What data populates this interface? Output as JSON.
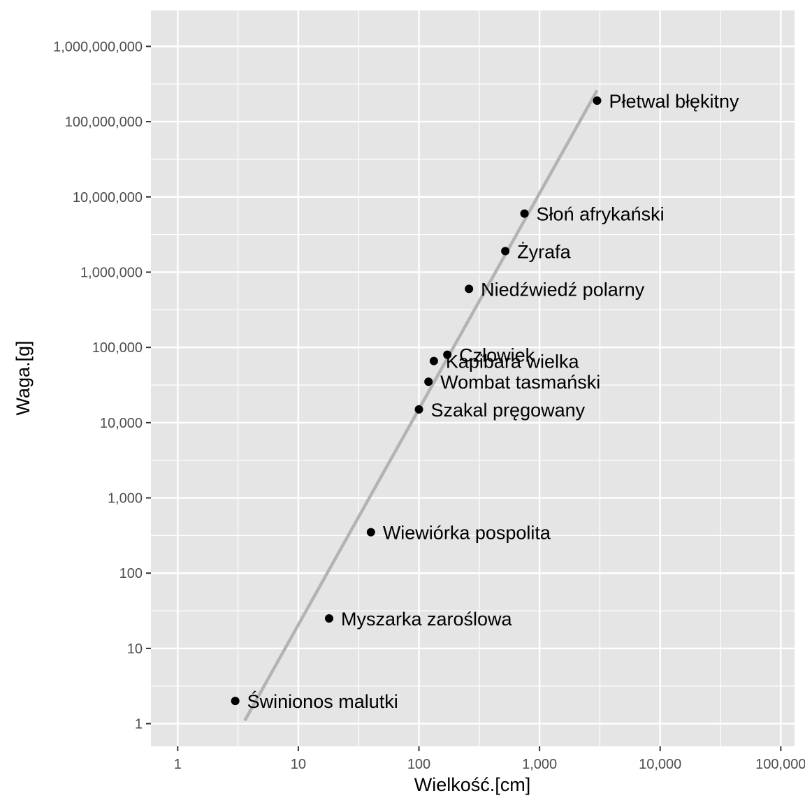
{
  "chart_data": {
    "type": "scatter",
    "title": "",
    "xlabel": "Wielkość.[cm]",
    "ylabel": "Waga.[g]",
    "x_scale": "log10",
    "y_scale": "log10",
    "xlim": [
      0.6,
      130000
    ],
    "ylim": [
      0.5,
      3000000000
    ],
    "x_ticks": [
      {
        "value": 1,
        "label": "1"
      },
      {
        "value": 10,
        "label": "10"
      },
      {
        "value": 100,
        "label": "100"
      },
      {
        "value": 1000,
        "label": "1,000"
      },
      {
        "value": 10000,
        "label": "10,000"
      },
      {
        "value": 100000,
        "label": "100,000"
      }
    ],
    "y_ticks": [
      {
        "value": 1,
        "label": "1"
      },
      {
        "value": 10,
        "label": "10"
      },
      {
        "value": 100,
        "label": "100"
      },
      {
        "value": 1000,
        "label": "1,000"
      },
      {
        "value": 10000,
        "label": "10,000"
      },
      {
        "value": 100000,
        "label": "100,000"
      },
      {
        "value": 1000000,
        "label": "1,000,000"
      },
      {
        "value": 10000000,
        "label": "10,000,000"
      },
      {
        "value": 100000000,
        "label": "100,000,000"
      },
      {
        "value": 1000000000,
        "label": "1,000,000,000"
      }
    ],
    "grid": true,
    "points": [
      {
        "label": "Świnionos malutki",
        "x": 3,
        "y": 2
      },
      {
        "label": "Myszarka zaroślowa",
        "x": 18,
        "y": 25
      },
      {
        "label": "Wiewiórka pospolita",
        "x": 40,
        "y": 350
      },
      {
        "label": "Szakal pręgowany",
        "x": 100,
        "y": 15000
      },
      {
        "label": "Wombat tasmański",
        "x": 120,
        "y": 35000
      },
      {
        "label": "Kapibara wielka",
        "x": 133,
        "y": 66000
      },
      {
        "label": "Człowiek",
        "x": 172,
        "y": 80000
      },
      {
        "label": "Niedźwiedź polarny",
        "x": 260,
        "y": 600000
      },
      {
        "label": "Żyrafa",
        "x": 520,
        "y": 1900000
      },
      {
        "label": "Słoń afrykański",
        "x": 750,
        "y": 6000000
      },
      {
        "label": "Płetwal błękitny",
        "x": 3000,
        "y": 190000000
      }
    ],
    "trend_line": {
      "x": [
        3.6,
        3000
      ],
      "y": [
        1.1,
        260000000
      ],
      "color": "#b3b3b3"
    },
    "colors": {
      "panel": "#e5e5e5",
      "grid": "#ffffff",
      "point": "#000000"
    }
  }
}
